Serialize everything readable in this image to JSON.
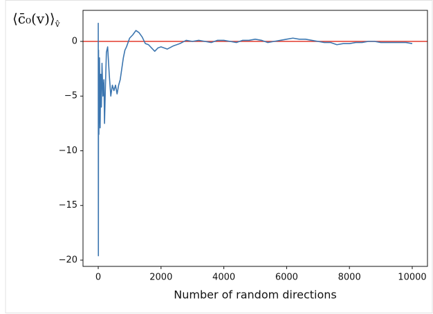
{
  "chart_data": {
    "type": "line",
    "xlabel": "Number of random directions",
    "ylabel": {
      "main": "⟨c̄₀(v)⟩",
      "sub": "v̂"
    },
    "x": [
      1,
      5,
      10,
      20,
      40,
      60,
      80,
      100,
      120,
      150,
      180,
      200,
      230,
      260,
      300,
      350,
      400,
      450,
      500,
      550,
      600,
      650,
      700,
      750,
      800,
      850,
      900,
      1000,
      1100,
      1200,
      1300,
      1400,
      1500,
      1600,
      1700,
      1800,
      1900,
      2000,
      2200,
      2400,
      2600,
      2800,
      3000,
      3200,
      3400,
      3600,
      3800,
      4000,
      4200,
      4400,
      4600,
      4800,
      5000,
      5200,
      5400,
      5600,
      5800,
      6000,
      6200,
      6400,
      6600,
      6800,
      7000,
      7200,
      7400,
      7600,
      7800,
      8000,
      8200,
      8400,
      8600,
      8800,
      9000,
      9200,
      9400,
      9600,
      9800,
      10000
    ],
    "series": [
      {
        "color": "#3b75af",
        "values": [
          1.7,
          -19.6,
          -0.8,
          -8.5,
          -1.5,
          -7.9,
          -3,
          -6,
          -2,
          -5,
          -3.5,
          -7.5,
          -4,
          -1,
          -0.5,
          -3,
          -5,
          -4,
          -4.5,
          -4,
          -4.8,
          -4,
          -3.5,
          -2.5,
          -1.5,
          -0.8,
          -0.5,
          0.3,
          0.6,
          1.0,
          0.8,
          0.4,
          -0.2,
          -0.3,
          -0.6,
          -0.9,
          -0.6,
          -0.5,
          -0.7,
          -0.4,
          -0.2,
          0.1,
          0.0,
          0.1,
          0.0,
          -0.1,
          0.1,
          0.1,
          0.0,
          -0.1,
          0.1,
          0.1,
          0.2,
          0.1,
          -0.1,
          0.0,
          0.1,
          0.2,
          0.3,
          0.2,
          0.2,
          0.1,
          0.0,
          -0.1,
          -0.1,
          -0.3,
          -0.2,
          -0.2,
          -0.1,
          -0.1,
          0.0,
          0.0,
          -0.1,
          -0.1,
          -0.1,
          -0.1,
          -0.1,
          -0.2
        ]
      }
    ],
    "hline": 0,
    "hline_color": "#e2392b",
    "xlim": [
      -485,
      10485
    ],
    "ylim": [
      -20.57,
      2.84
    ],
    "xticks": [
      0,
      2000,
      4000,
      6000,
      8000,
      10000
    ],
    "yticks": [
      {
        "value": -20,
        "label": "−20"
      },
      {
        "value": -15,
        "label": "−15"
      },
      {
        "value": -10,
        "label": "−10"
      },
      {
        "value": -5,
        "label": "−5"
      },
      0
    ]
  }
}
